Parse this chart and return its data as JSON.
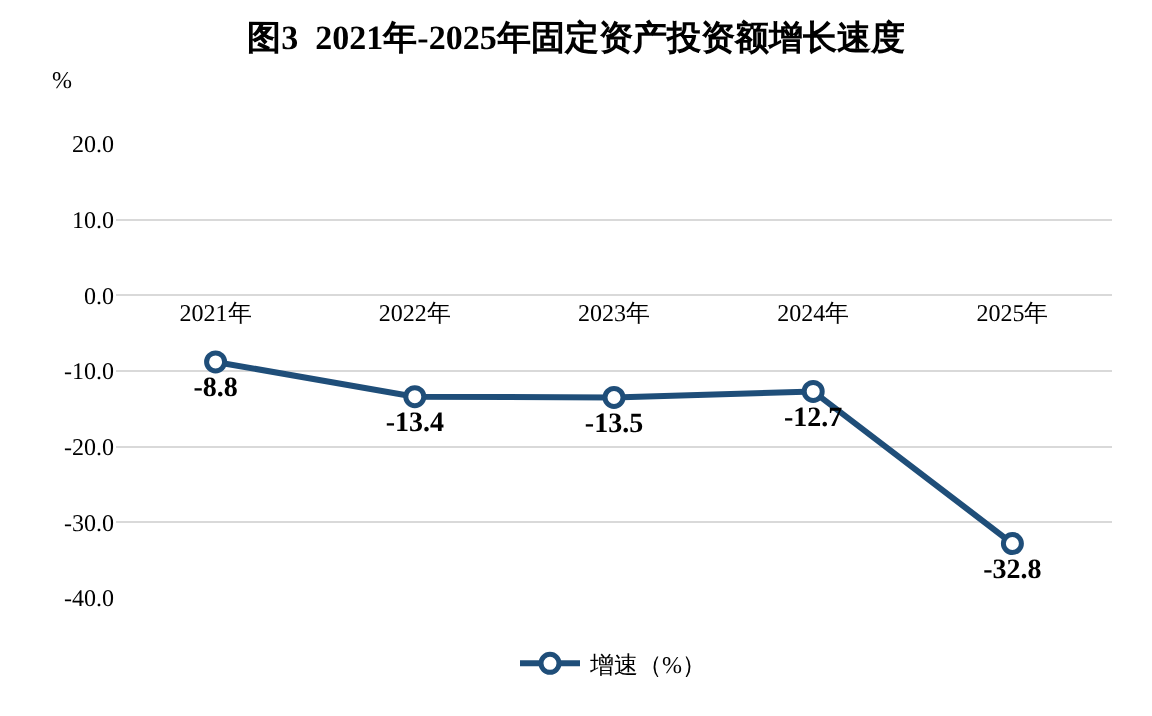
{
  "chart_data": {
    "type": "line",
    "title": "图3  2021年-2025年固定资产投资额增长速度",
    "ylabel": "%",
    "categories": [
      "2021年",
      "2022年",
      "2023年",
      "2024年",
      "2025年"
    ],
    "series": [
      {
        "name": "增速（%）",
        "color": "#1f4e79",
        "values": [
          -8.8,
          -13.4,
          -13.5,
          -12.7,
          -32.8
        ]
      }
    ],
    "ylim": [
      -40,
      20
    ],
    "yticks": [
      {
        "value": -40,
        "label": "-40.0"
      },
      {
        "value": -30,
        "label": "-30.0"
      },
      {
        "value": -20,
        "label": "-20.0"
      },
      {
        "value": -10,
        "label": "-10.0"
      },
      {
        "value": 0,
        "label": "0.0"
      },
      {
        "value": 10,
        "label": "10.0"
      },
      {
        "value": 20,
        "label": "20.0"
      }
    ],
    "grid": "y",
    "legend": "bottom",
    "marker": "circle",
    "line_style": "solid",
    "data_labels": true
  }
}
